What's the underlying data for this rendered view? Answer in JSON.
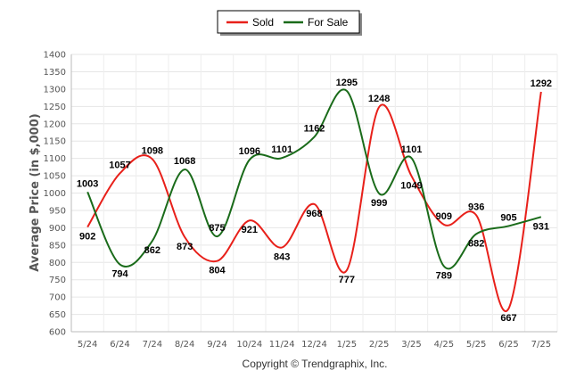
{
  "chart_data": {
    "type": "line",
    "title": "",
    "xlabel": "",
    "ylabel": "Average Price (in $,000)",
    "ylim": [
      600,
      1400
    ],
    "ytick_step": 50,
    "grid": true,
    "legend_position": "top-center",
    "categories": [
      "5/24",
      "6/24",
      "7/24",
      "8/24",
      "9/24",
      "10/24",
      "11/24",
      "12/24",
      "1/25",
      "2/25",
      "3/25",
      "4/25",
      "5/25",
      "6/25",
      "7/25"
    ],
    "series": [
      {
        "name": "Sold",
        "color": "#e8201a",
        "values": [
          902,
          1057,
          1098,
          873,
          804,
          921,
          843,
          968,
          777,
          1248,
          1049,
          909,
          936,
          667,
          1292
        ]
      },
      {
        "name": "For Sale",
        "color": "#1a6b1a",
        "values": [
          1003,
          794,
          862,
          1068,
          875,
          1096,
          1101,
          1162,
          1295,
          999,
          1101,
          789,
          882,
          905,
          931
        ]
      }
    ],
    "footer": "Copyright © Trendgraphix, Inc."
  }
}
